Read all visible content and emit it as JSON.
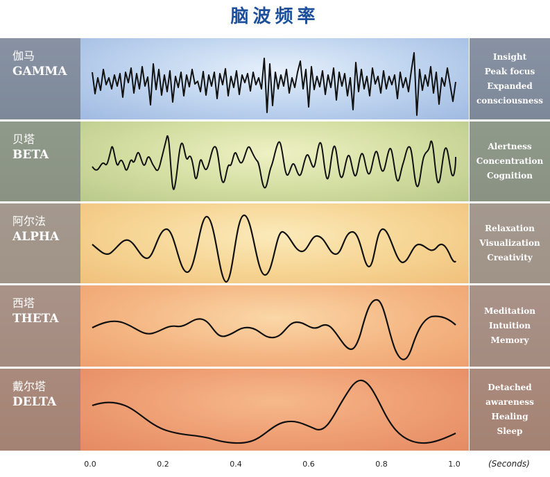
{
  "title": "脑波频率",
  "bands": [
    {
      "cn": "伽马",
      "en": "GAMMA",
      "desc": [
        "Insight",
        "Peak focus",
        "Expanded",
        "consciousness"
      ]
    },
    {
      "cn": "贝塔",
      "en": "BETA",
      "desc": [
        "Alertness",
        "Concentration",
        "Cognition"
      ]
    },
    {
      "cn": "阿尔法",
      "en": "ALPHA",
      "desc": [
        "Relaxation",
        "Visualization",
        "Creativity"
      ]
    },
    {
      "cn": "西塔",
      "en": "THETA",
      "desc": [
        "Meditation",
        "Intuition",
        "Memory"
      ]
    },
    {
      "cn": "戴尔塔",
      "en": "DELTA",
      "desc": [
        "Detached",
        "awareness",
        "Healing",
        "Sleep"
      ]
    }
  ],
  "axis": {
    "ticks": [
      "0.0",
      "0.2",
      "0.4",
      "0.6",
      "0.8",
      "1.0"
    ],
    "unit": "(Seconds)"
  },
  "colors": {
    "title": "#1d4f9b",
    "wave": "#111111"
  }
}
